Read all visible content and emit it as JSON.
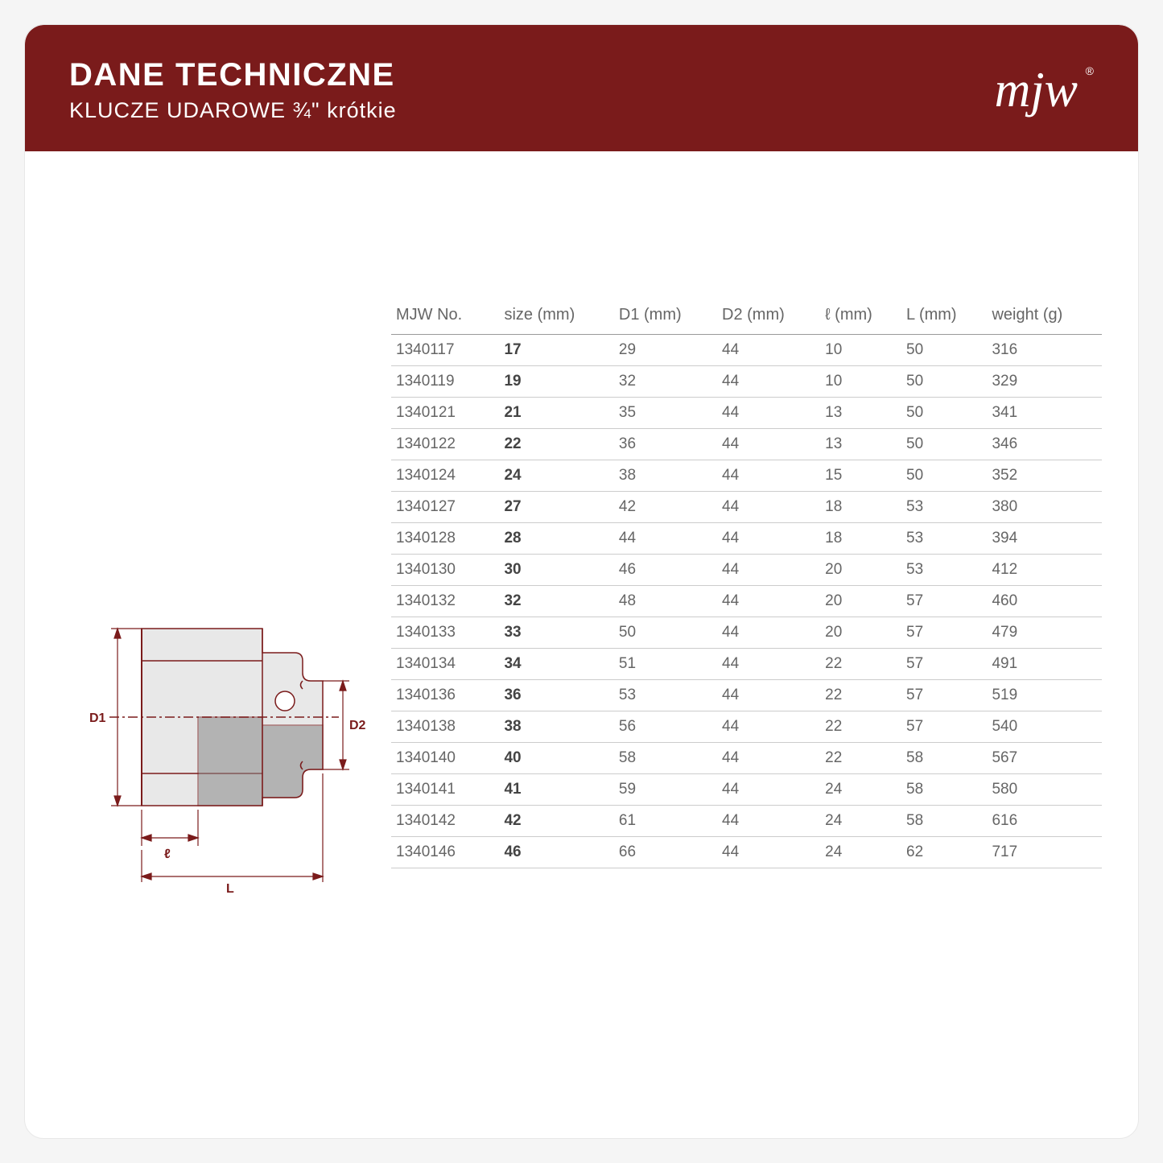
{
  "header": {
    "title": "DANE TECHNICZNE",
    "subtitle": "KLUCZE UDAROWE ¾\" krótkie",
    "logo_text": "mjw"
  },
  "colors": {
    "header_bg": "#7a1b1b",
    "text": "#666666",
    "border": "#cccccc",
    "header_border": "#999999",
    "diagram_line": "#7a1b1b",
    "diagram_fill": "#d0d0d0"
  },
  "table": {
    "columns": [
      "MJW No.",
      "size (mm)",
      "D1 (mm)",
      "D2 (mm)",
      "ℓ (mm)",
      "L (mm)",
      "weight (g)"
    ],
    "bold_column_index": 1,
    "rows": [
      [
        "1340117",
        "17",
        "29",
        "44",
        "10",
        "50",
        "316"
      ],
      [
        "1340119",
        "19",
        "32",
        "44",
        "10",
        "50",
        "329"
      ],
      [
        "1340121",
        "21",
        "35",
        "44",
        "13",
        "50",
        "341"
      ],
      [
        "1340122",
        "22",
        "36",
        "44",
        "13",
        "50",
        "346"
      ],
      [
        "1340124",
        "24",
        "38",
        "44",
        "15",
        "50",
        "352"
      ],
      [
        "1340127",
        "27",
        "42",
        "44",
        "18",
        "53",
        "380"
      ],
      [
        "1340128",
        "28",
        "44",
        "44",
        "18",
        "53",
        "394"
      ],
      [
        "1340130",
        "30",
        "46",
        "44",
        "20",
        "53",
        "412"
      ],
      [
        "1340132",
        "32",
        "48",
        "44",
        "20",
        "57",
        "460"
      ],
      [
        "1340133",
        "33",
        "50",
        "44",
        "20",
        "57",
        "479"
      ],
      [
        "1340134",
        "34",
        "51",
        "44",
        "22",
        "57",
        "491"
      ],
      [
        "1340136",
        "36",
        "53",
        "44",
        "22",
        "57",
        "519"
      ],
      [
        "1340138",
        "38",
        "56",
        "44",
        "22",
        "57",
        "540"
      ],
      [
        "1340140",
        "40",
        "58",
        "44",
        "22",
        "58",
        "567"
      ],
      [
        "1340141",
        "41",
        "59",
        "44",
        "24",
        "58",
        "580"
      ],
      [
        "1340142",
        "42",
        "61",
        "44",
        "24",
        "58",
        "616"
      ],
      [
        "1340146",
        "46",
        "66",
        "44",
        "24",
        "62",
        "717"
      ]
    ]
  },
  "diagram": {
    "labels": {
      "d1": "D1",
      "d2": "D2",
      "l_small": "ℓ",
      "l_large": "L"
    },
    "line_color": "#7a1b1b",
    "fill_color": "#c8c8c8"
  }
}
